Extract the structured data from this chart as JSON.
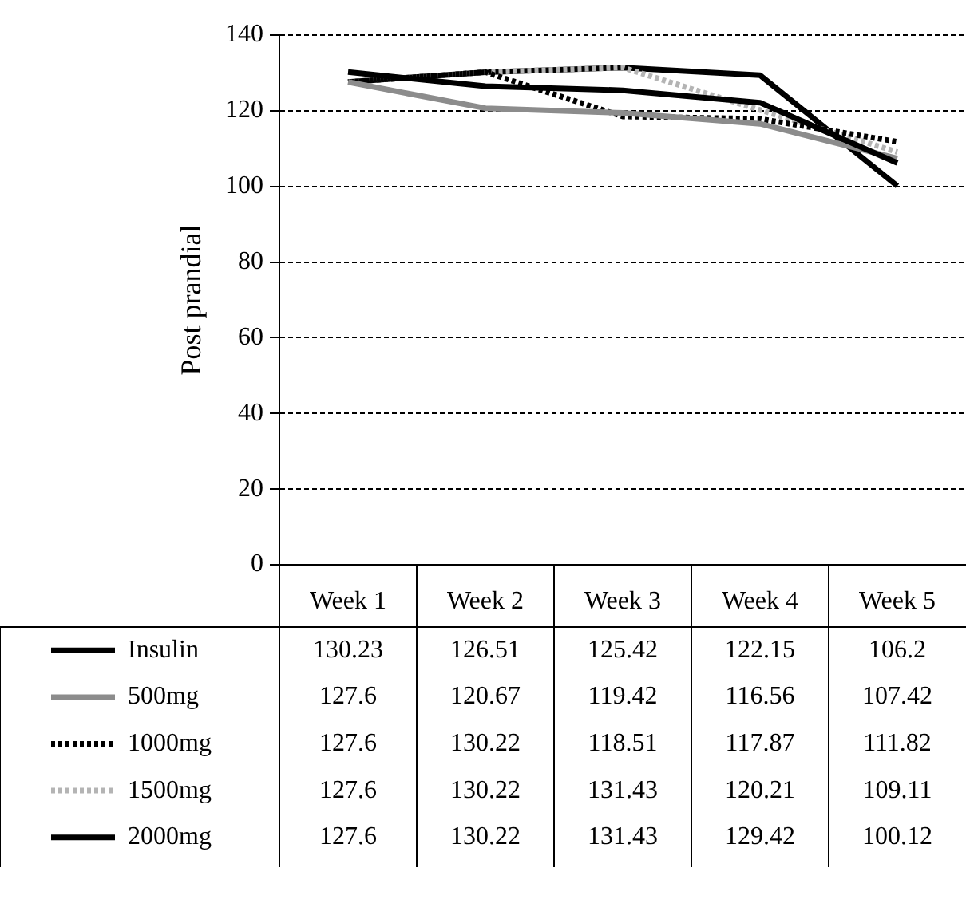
{
  "chart_data": {
    "type": "line",
    "ylabel": "Post prandial",
    "categories": [
      "Week 1",
      "Week 2",
      "Week 3",
      "Week 4",
      "Week 5"
    ],
    "ylim": [
      0,
      140
    ],
    "yticks": [
      0,
      20,
      40,
      60,
      80,
      100,
      120,
      140
    ],
    "grid": "y",
    "legend": "bottom",
    "data_labels": true,
    "marker": "none",
    "series": [
      {
        "name": "Insulin",
        "color": "#000000",
        "line_style": "solid",
        "values": [
          130.23,
          126.51,
          125.42,
          122.15,
          106.2
        ]
      },
      {
        "name": "500mg",
        "color": "#8c8c8c",
        "line_style": "solid",
        "values": [
          127.6,
          120.67,
          119.42,
          116.56,
          107.42
        ]
      },
      {
        "name": "1000mg",
        "color": "#000000",
        "line_style": "dotted",
        "values": [
          127.6,
          130.22,
          118.51,
          117.87,
          111.82
        ]
      },
      {
        "name": "1500mg",
        "color": "#b4b4b4",
        "line_style": "dotted",
        "values": [
          127.6,
          130.22,
          131.43,
          120.21,
          109.11
        ]
      },
      {
        "name": "2000mg",
        "color": "#000000",
        "line_style": "solid",
        "values": [
          127.6,
          130.22,
          131.43,
          129.42,
          100.12
        ]
      }
    ]
  }
}
